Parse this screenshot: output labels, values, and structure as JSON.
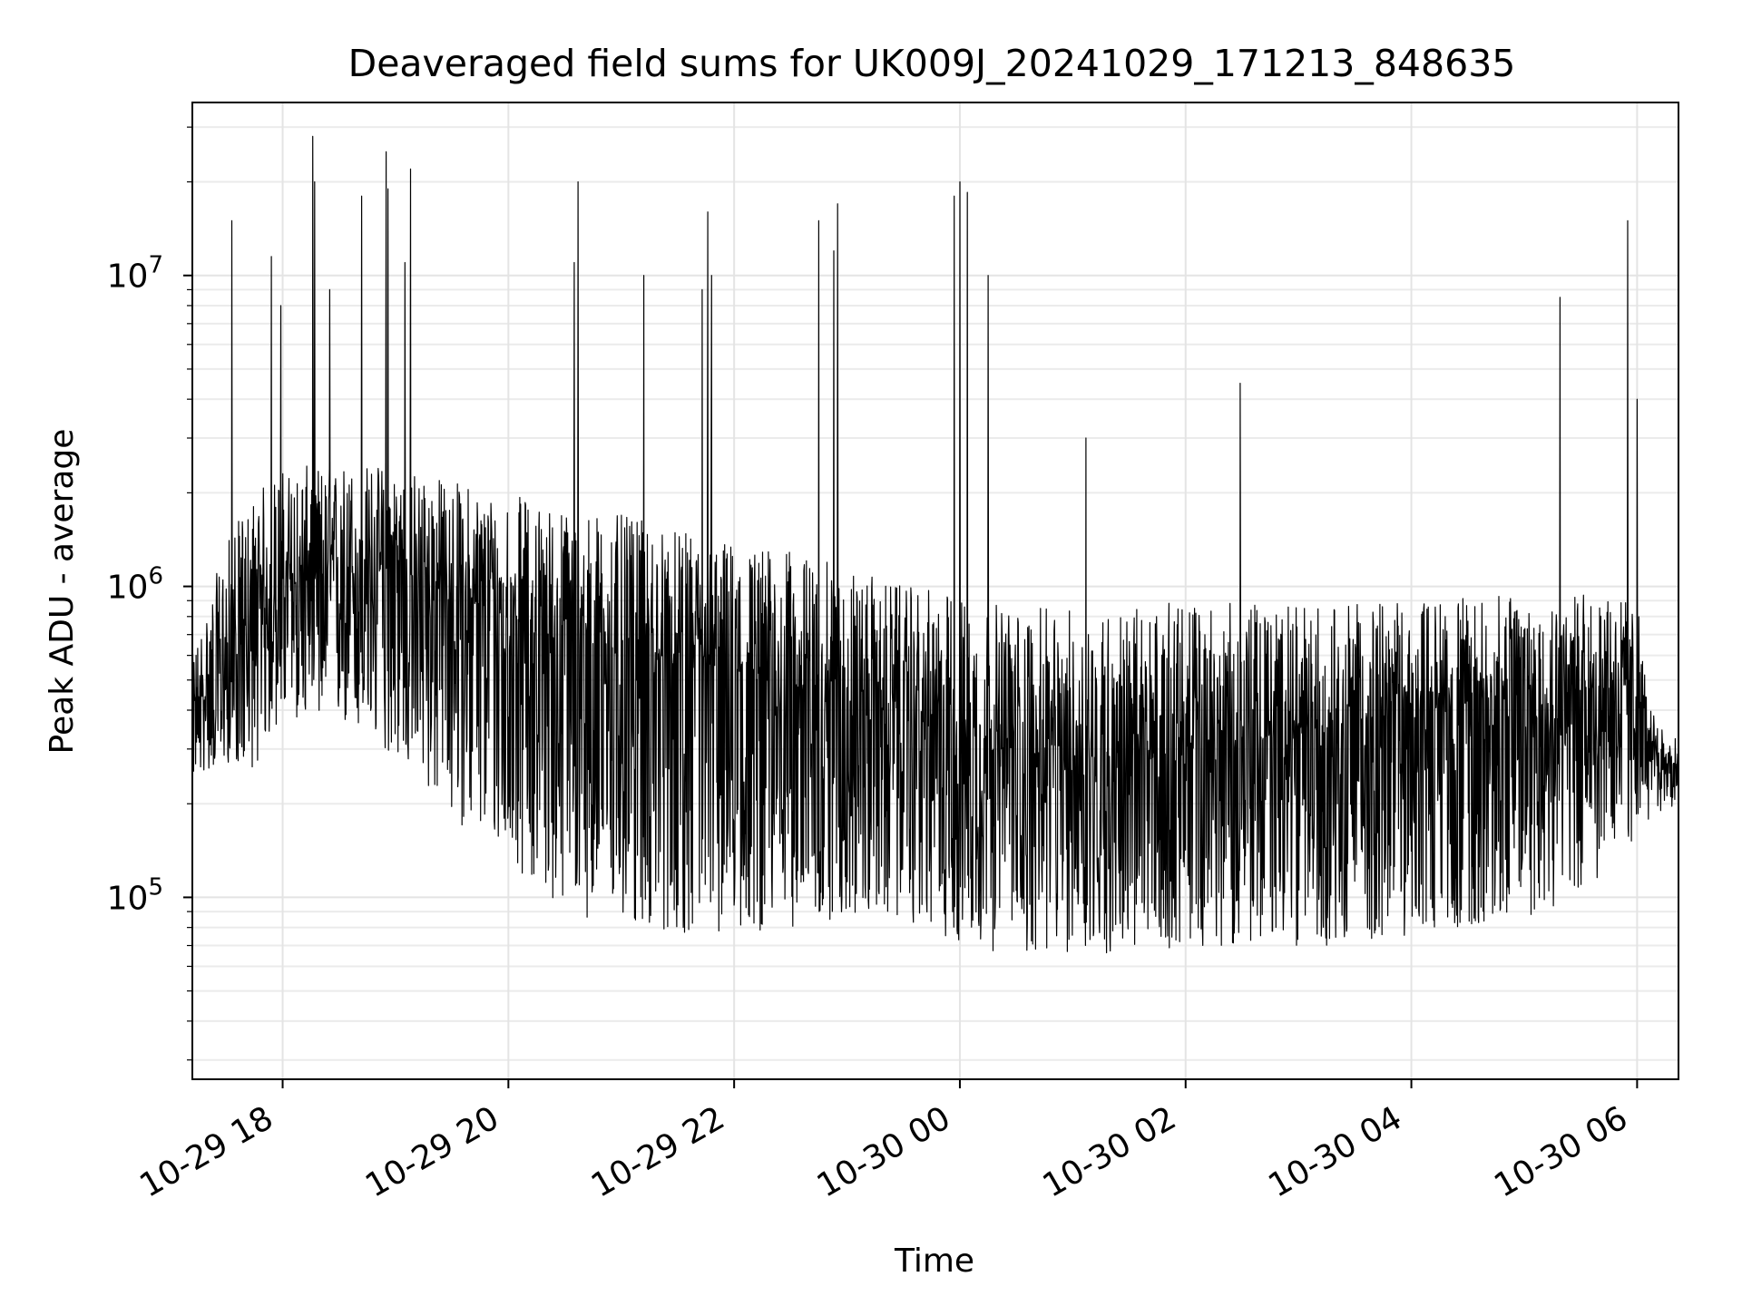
{
  "chart_data": {
    "type": "line",
    "title": "Deaveraged field sums for UK009J_20241029_171213_848635",
    "xlabel": "Time",
    "ylabel": "Peak ADU - average",
    "x_range": [
      "2024-10-29 17:12",
      "2024-10-30 06:22"
    ],
    "y_scale": "log",
    "ylim": [
      26000,
      36000000
    ],
    "grid": true,
    "x_ticks": [
      {
        "value": "2024-10-29 18:00",
        "label": "10-29 18"
      },
      {
        "value": "2024-10-29 20:00",
        "label": "10-29 20"
      },
      {
        "value": "2024-10-29 22:00",
        "label": "10-29 22"
      },
      {
        "value": "2024-10-30 00:00",
        "label": "10-30 00"
      },
      {
        "value": "2024-10-30 02:00",
        "label": "10-30 02"
      },
      {
        "value": "2024-10-30 04:00",
        "label": "10-30 04"
      },
      {
        "value": "2024-10-30 06:00",
        "label": "10-30 06"
      }
    ],
    "y_ticks": [
      {
        "value": 100000,
        "base": "10",
        "exp": "5"
      },
      {
        "value": 1000000,
        "base": "10",
        "exp": "6"
      },
      {
        "value": 10000000,
        "base": "10",
        "exp": "7"
      }
    ],
    "series": [
      {
        "color": "#000000",
        "envelope": [
          {
            "x": "2024-10-29 17:12",
            "median": 400000,
            "low": 240000,
            "high": 600000
          },
          {
            "x": "2024-10-29 17:30",
            "median": 520000,
            "low": 270000,
            "high": 1400000
          },
          {
            "x": "2024-10-29 17:45",
            "median": 750000,
            "low": 260000,
            "high": 2000000
          },
          {
            "x": "2024-10-29 18:00",
            "median": 1000000,
            "low": 380000,
            "high": 2400000
          },
          {
            "x": "2024-10-29 18:30",
            "median": 1100000,
            "low": 350000,
            "high": 2500000
          },
          {
            "x": "2024-10-29 19:00",
            "median": 1100000,
            "low": 280000,
            "high": 2500000
          },
          {
            "x": "2024-10-29 19:30",
            "median": 950000,
            "low": 180000,
            "high": 2200000
          },
          {
            "x": "2024-10-29 20:00",
            "median": 800000,
            "low": 130000,
            "high": 2000000
          },
          {
            "x": "2024-10-29 20:30",
            "median": 650000,
            "low": 90000,
            "high": 1800000
          },
          {
            "x": "2024-10-29 21:00",
            "median": 600000,
            "low": 80000,
            "high": 1700000
          },
          {
            "x": "2024-10-29 21:30",
            "median": 560000,
            "low": 75000,
            "high": 1500000
          },
          {
            "x": "2024-10-29 22:00",
            "median": 520000,
            "low": 75000,
            "high": 1400000
          },
          {
            "x": "2024-10-29 22:30",
            "median": 470000,
            "low": 80000,
            "high": 1300000
          },
          {
            "x": "2024-10-29 23:00",
            "median": 430000,
            "low": 85000,
            "high": 1150000
          },
          {
            "x": "2024-10-29 23:30",
            "median": 380000,
            "low": 85000,
            "high": 1000000
          },
          {
            "x": "2024-10-30 00:00",
            "median": 320000,
            "low": 70000,
            "high": 950000
          },
          {
            "x": "2024-10-30 00:30",
            "median": 290000,
            "low": 65000,
            "high": 850000
          },
          {
            "x": "2024-10-30 01:00",
            "median": 280000,
            "low": 65000,
            "high": 850000
          },
          {
            "x": "2024-10-30 01:30",
            "median": 280000,
            "low": 65000,
            "high": 850000
          },
          {
            "x": "2024-10-30 02:00",
            "median": 290000,
            "low": 70000,
            "high": 900000
          },
          {
            "x": "2024-10-30 02:30",
            "median": 310000,
            "low": 70000,
            "high": 880000
          },
          {
            "x": "2024-10-30 03:00",
            "median": 330000,
            "low": 70000,
            "high": 870000
          },
          {
            "x": "2024-10-30 03:30",
            "median": 360000,
            "low": 70000,
            "high": 880000
          },
          {
            "x": "2024-10-30 04:00",
            "median": 390000,
            "low": 75000,
            "high": 900000
          },
          {
            "x": "2024-10-30 04:30",
            "median": 420000,
            "low": 80000,
            "high": 920000
          },
          {
            "x": "2024-10-30 05:00",
            "median": 440000,
            "low": 85000,
            "high": 950000
          },
          {
            "x": "2024-10-30 05:30",
            "median": 460000,
            "low": 100000,
            "high": 950000
          },
          {
            "x": "2024-10-30 06:00",
            "median": 480000,
            "low": 150000,
            "high": 900000
          },
          {
            "x": "2024-10-30 06:07",
            "median": 290000,
            "low": 180000,
            "high": 400000
          },
          {
            "x": "2024-10-30 06:22",
            "median": 260000,
            "low": 200000,
            "high": 320000
          }
        ],
        "spikes": [
          {
            "x": "2024-10-29 17:33",
            "y": 15000000
          },
          {
            "x": "2024-10-29 17:54",
            "y": 11500000
          },
          {
            "x": "2024-10-29 17:59",
            "y": 8000000
          },
          {
            "x": "2024-10-29 18:16",
            "y": 28000000
          },
          {
            "x": "2024-10-29 18:17",
            "y": 20000000
          },
          {
            "x": "2024-10-29 18:25",
            "y": 9000000
          },
          {
            "x": "2024-10-29 18:42",
            "y": 18000000
          },
          {
            "x": "2024-10-29 18:55",
            "y": 25000000
          },
          {
            "x": "2024-10-29 18:56",
            "y": 19000000
          },
          {
            "x": "2024-10-29 19:08",
            "y": 22000000
          },
          {
            "x": "2024-10-29 19:05",
            "y": 11000000
          },
          {
            "x": "2024-10-29 20:35",
            "y": 11000000
          },
          {
            "x": "2024-10-29 20:37",
            "y": 20000000
          },
          {
            "x": "2024-10-29 21:12",
            "y": 10000000
          },
          {
            "x": "2024-10-29 21:43",
            "y": 9000000
          },
          {
            "x": "2024-10-29 21:46",
            "y": 16000000
          },
          {
            "x": "2024-10-29 21:48",
            "y": 10000000
          },
          {
            "x": "2024-10-29 22:45",
            "y": 15000000
          },
          {
            "x": "2024-10-29 22:55",
            "y": 17000000
          },
          {
            "x": "2024-10-29 22:53",
            "y": 12000000
          },
          {
            "x": "2024-10-29 23:57",
            "y": 18000000
          },
          {
            "x": "2024-10-30 00:00",
            "y": 20000000
          },
          {
            "x": "2024-10-30 00:04",
            "y": 18500000
          },
          {
            "x": "2024-10-30 00:15",
            "y": 10000000
          },
          {
            "x": "2024-10-30 01:07",
            "y": 3000000
          },
          {
            "x": "2024-10-30 02:29",
            "y": 4500000
          },
          {
            "x": "2024-10-30 05:19",
            "y": 8500000
          },
          {
            "x": "2024-10-30 05:55",
            "y": 15000000
          },
          {
            "x": "2024-10-30 06:00",
            "y": 4000000
          }
        ]
      }
    ]
  }
}
